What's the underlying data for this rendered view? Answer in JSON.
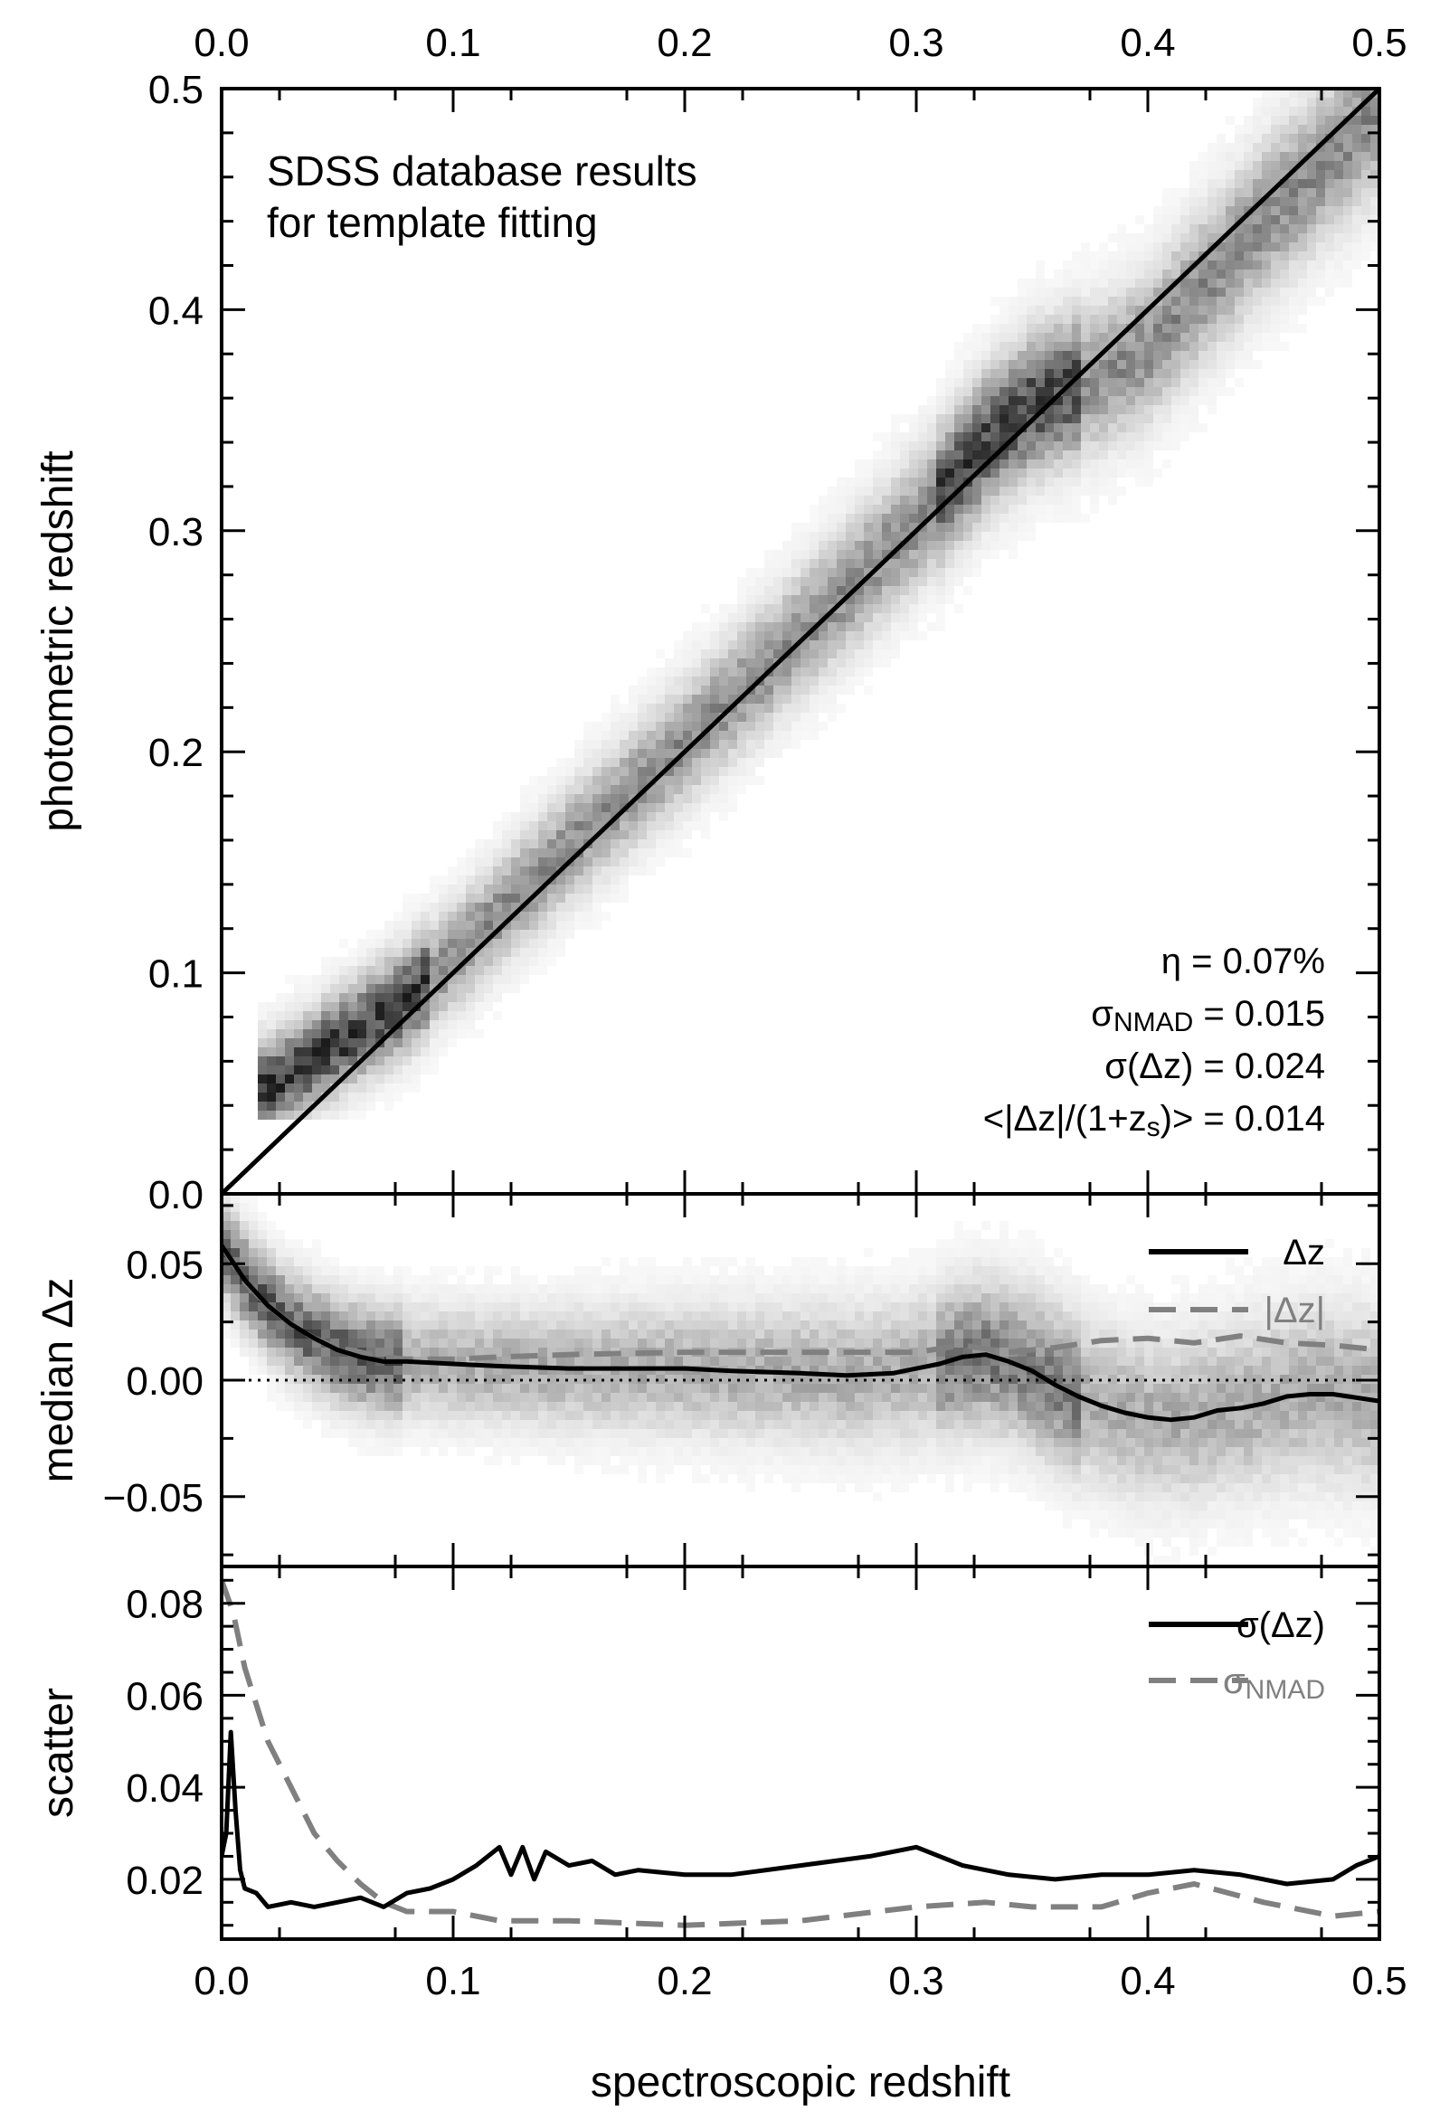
{
  "chart_data": [
    {
      "type": "scatter",
      "panel": "main",
      "annotation": [
        "SDSS database results",
        "for template fitting"
      ],
      "xlabel": "",
      "ylabel": "photometric redshift",
      "xlim": [
        0.0,
        0.5
      ],
      "ylim": [
        0.0,
        0.5
      ],
      "x_ticks": [
        "0.0",
        "0.1",
        "0.2",
        "0.3",
        "0.4",
        "0.5"
      ],
      "y_ticks": [
        "0.0",
        "0.1",
        "0.2",
        "0.3",
        "0.4",
        "0.5"
      ],
      "density_ridge": {
        "x": [
          0.02,
          0.05,
          0.08,
          0.1,
          0.15,
          0.2,
          0.25,
          0.3,
          0.33,
          0.35,
          0.38,
          0.4,
          0.45,
          0.5
        ],
        "y": [
          0.048,
          0.068,
          0.088,
          0.107,
          0.157,
          0.204,
          0.253,
          0.304,
          0.34,
          0.357,
          0.37,
          0.383,
          0.44,
          0.49
        ]
      },
      "reference_line": {
        "x": [
          0.0,
          0.5
        ],
        "y": [
          0.0,
          0.5
        ]
      },
      "stats": [
        {
          "symbol": "η",
          "sub": "",
          "text": " = 0.07%"
        },
        {
          "symbol": "σ",
          "sub": "NMAD",
          "text": " = 0.015"
        },
        {
          "symbol": "σ",
          "sub": "",
          "text": "(Δz) = 0.024"
        },
        {
          "symbol": "<|Δz|/(1+z",
          "sub": "s",
          "text": ")> = 0.014"
        }
      ]
    },
    {
      "type": "line",
      "panel": "residual",
      "ylabel": "median Δz",
      "xlim": [
        0.0,
        0.5
      ],
      "ylim": [
        -0.08,
        0.08
      ],
      "y_ticks": [
        {
          "value": 0.05,
          "label": "0.05"
        },
        {
          "value": 0.0,
          "label": "0.00"
        },
        {
          "value": -0.05,
          "label": "−0.05"
        }
      ],
      "zero_line": true,
      "series": [
        {
          "name": "Δz",
          "color": "#000000",
          "style": "solid",
          "x": [
            0.0,
            0.01,
            0.02,
            0.03,
            0.04,
            0.05,
            0.06,
            0.07,
            0.08,
            0.1,
            0.12,
            0.15,
            0.18,
            0.2,
            0.22,
            0.25,
            0.27,
            0.29,
            0.3,
            0.31,
            0.32,
            0.33,
            0.34,
            0.35,
            0.36,
            0.37,
            0.38,
            0.39,
            0.4,
            0.41,
            0.42,
            0.43,
            0.44,
            0.45,
            0.46,
            0.47,
            0.48,
            0.5
          ],
          "y": [
            0.058,
            0.043,
            0.032,
            0.024,
            0.018,
            0.013,
            0.01,
            0.008,
            0.008,
            0.007,
            0.006,
            0.005,
            0.005,
            0.005,
            0.004,
            0.003,
            0.002,
            0.003,
            0.005,
            0.007,
            0.01,
            0.011,
            0.008,
            0.004,
            -0.002,
            -0.007,
            -0.011,
            -0.014,
            -0.016,
            -0.017,
            -0.016,
            -0.013,
            -0.012,
            -0.01,
            -0.007,
            -0.006,
            -0.006,
            -0.009
          ]
        },
        {
          "name": "|Δz|",
          "color": "#808080",
          "style": "dashed",
          "x": [
            0.0,
            0.01,
            0.02,
            0.03,
            0.04,
            0.05,
            0.06,
            0.07,
            0.08,
            0.1,
            0.12,
            0.15,
            0.2,
            0.25,
            0.3,
            0.32,
            0.34,
            0.36,
            0.38,
            0.4,
            0.42,
            0.44,
            0.46,
            0.48,
            0.5
          ],
          "y": [
            0.058,
            0.042,
            0.032,
            0.024,
            0.018,
            0.014,
            0.012,
            0.01,
            0.009,
            0.009,
            0.01,
            0.011,
            0.012,
            0.012,
            0.012,
            0.015,
            0.012,
            0.014,
            0.017,
            0.018,
            0.016,
            0.019,
            0.016,
            0.015,
            0.013
          ]
        }
      ]
    },
    {
      "type": "line",
      "panel": "scatter",
      "xlabel": "spectroscopic redshift",
      "ylabel": "scatter",
      "xlim": [
        0.0,
        0.5
      ],
      "ylim": [
        0.007,
        0.088
      ],
      "x_ticks": [
        "0.0",
        "0.1",
        "0.2",
        "0.3",
        "0.4",
        "0.5"
      ],
      "y_ticks": [
        {
          "value": 0.08,
          "label": "0.08"
        },
        {
          "value": 0.06,
          "label": "0.06"
        },
        {
          "value": 0.04,
          "label": "0.04"
        },
        {
          "value": 0.02,
          "label": "0.02"
        }
      ],
      "series": [
        {
          "name": "σ(Δz)",
          "color": "#000000",
          "style": "solid",
          "x": [
            0.0,
            0.002,
            0.004,
            0.006,
            0.008,
            0.01,
            0.015,
            0.02,
            0.03,
            0.04,
            0.05,
            0.06,
            0.07,
            0.08,
            0.09,
            0.1,
            0.11,
            0.12,
            0.125,
            0.13,
            0.135,
            0.14,
            0.15,
            0.16,
            0.17,
            0.18,
            0.2,
            0.22,
            0.25,
            0.28,
            0.3,
            0.31,
            0.32,
            0.34,
            0.36,
            0.38,
            0.4,
            0.42,
            0.44,
            0.46,
            0.48,
            0.49,
            0.5
          ],
          "y": [
            0.025,
            0.03,
            0.052,
            0.035,
            0.022,
            0.018,
            0.017,
            0.014,
            0.015,
            0.014,
            0.015,
            0.016,
            0.014,
            0.017,
            0.018,
            0.02,
            0.023,
            0.027,
            0.021,
            0.027,
            0.02,
            0.026,
            0.023,
            0.024,
            0.021,
            0.022,
            0.021,
            0.021,
            0.023,
            0.025,
            0.027,
            0.025,
            0.023,
            0.021,
            0.02,
            0.021,
            0.021,
            0.022,
            0.021,
            0.019,
            0.02,
            0.023,
            0.025
          ]
        },
        {
          "name": "σ",
          "name_sub": "NMAD",
          "color": "#808080",
          "style": "dashed",
          "x": [
            0.0,
            0.005,
            0.01,
            0.02,
            0.03,
            0.04,
            0.05,
            0.06,
            0.07,
            0.08,
            0.1,
            0.12,
            0.15,
            0.2,
            0.25,
            0.3,
            0.33,
            0.35,
            0.38,
            0.4,
            0.42,
            0.45,
            0.48,
            0.5
          ],
          "y": [
            0.085,
            0.078,
            0.066,
            0.05,
            0.04,
            0.03,
            0.024,
            0.019,
            0.015,
            0.013,
            0.013,
            0.011,
            0.011,
            0.01,
            0.011,
            0.014,
            0.015,
            0.014,
            0.014,
            0.017,
            0.019,
            0.015,
            0.012,
            0.013
          ]
        }
      ]
    }
  ]
}
